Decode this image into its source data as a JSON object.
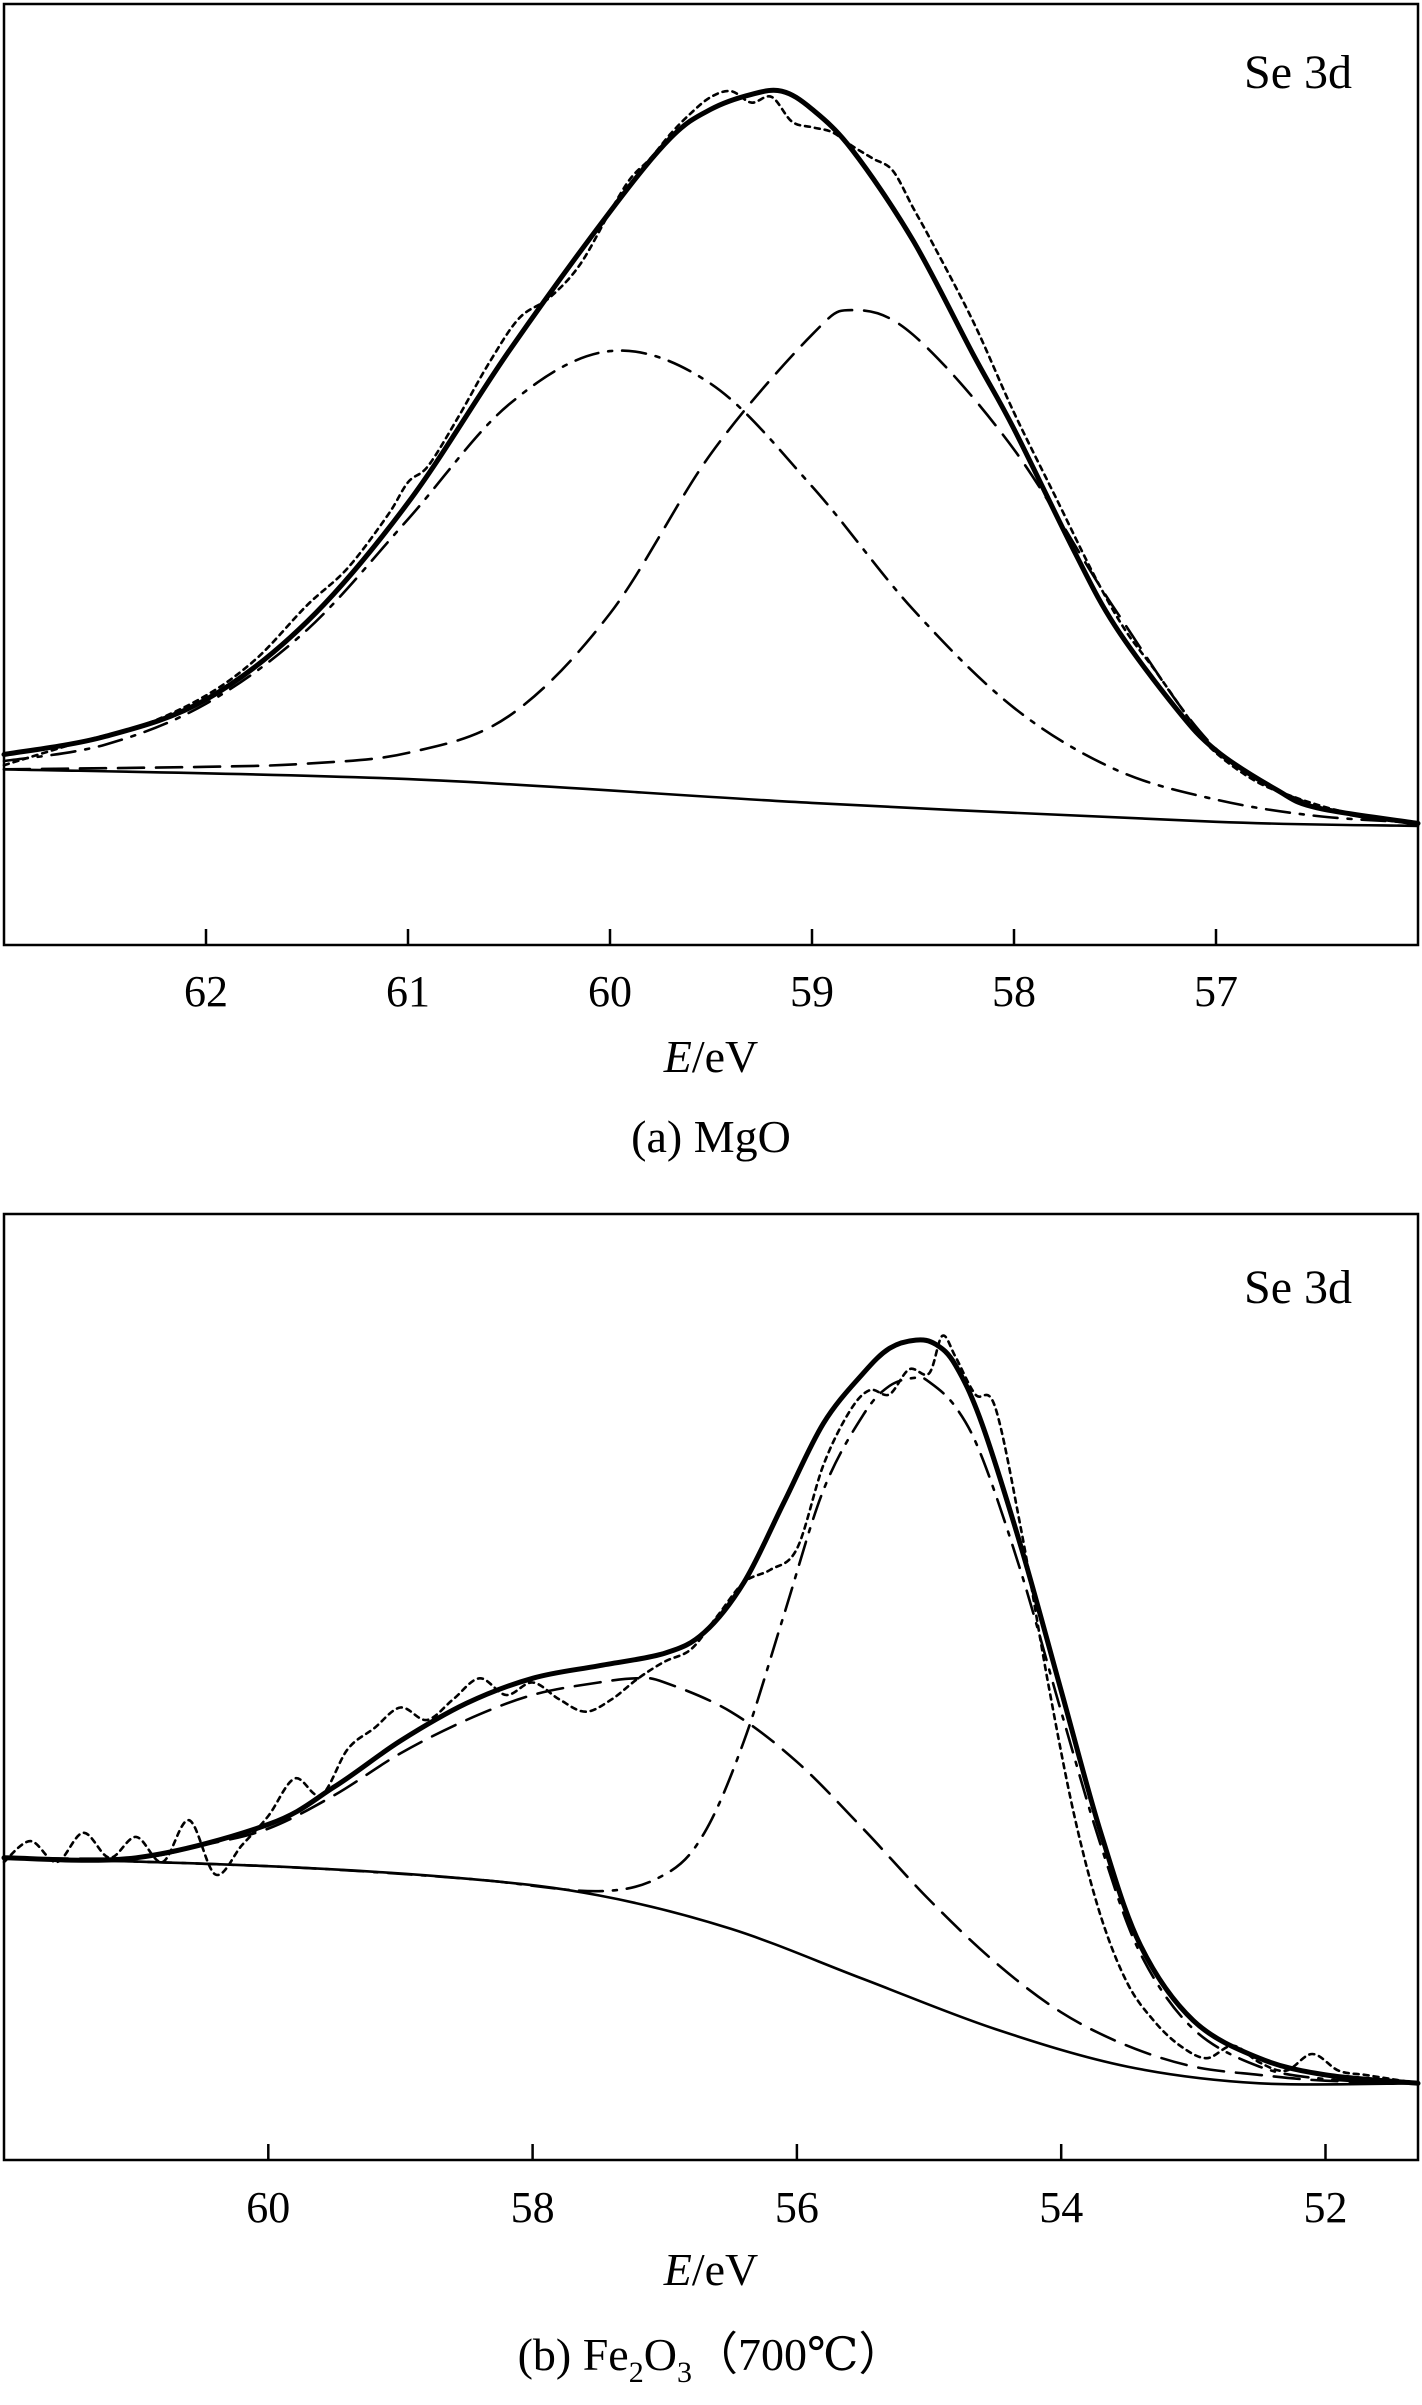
{
  "chart_data": [
    {
      "type": "line",
      "panel": "a",
      "label": "Se 3d",
      "xlabel_italic": "E",
      "xlabel_unit": "/eV",
      "caption": "(a) MgO",
      "xlim": [
        63.0,
        56.0
      ],
      "ylim": [
        0,
        100
      ],
      "xticks": [
        62,
        61,
        60,
        59,
        58,
        57
      ],
      "xtick_labels": [
        "62",
        "61",
        "60",
        "59",
        "58",
        "57"
      ],
      "background": {
        "x": [
          63.0,
          61.0,
          59.0,
          57.0,
          56.0
        ],
        "y": [
          13.5,
          12.3,
          9.4,
          7.1,
          6.6
        ]
      },
      "series": [
        {
          "name": "fitted envelope",
          "style": "envelope",
          "x": [
            63.0,
            62.5,
            62.0,
            61.5,
            61.0,
            60.5,
            60.0,
            59.7,
            59.5,
            59.3,
            59.15,
            59.0,
            58.8,
            58.5,
            58.2,
            58.0,
            57.7,
            57.5,
            57.2,
            57.0,
            56.7,
            56.5,
            56.0
          ],
          "y": [
            15.3,
            17.5,
            22.0,
            31.5,
            46.0,
            64.5,
            81.5,
            90.5,
            94.0,
            95.8,
            96.2,
            94.0,
            89.0,
            78.0,
            64.0,
            55.0,
            40.0,
            31.0,
            21.0,
            15.8,
            11.0,
            8.8,
            6.9
          ]
        },
        {
          "name": "raw spectrum",
          "style": "raw",
          "x": [
            63.0,
            62.6,
            62.3,
            62.0,
            61.75,
            61.5,
            61.3,
            61.1,
            61.0,
            60.9,
            60.75,
            60.6,
            60.45,
            60.3,
            60.15,
            60.0,
            59.9,
            59.8,
            59.7,
            59.6,
            59.5,
            59.4,
            59.3,
            59.2,
            59.1,
            59.0,
            58.9,
            58.8,
            58.7,
            58.6,
            58.5,
            58.4,
            58.2,
            58.0,
            57.8,
            57.6,
            57.45,
            57.3,
            57.1,
            57.0,
            56.8,
            56.6,
            56.4,
            56.2,
            56.0
          ],
          "y": [
            14.0,
            17.0,
            19.0,
            22.5,
            27.0,
            33.5,
            38.0,
            44.5,
            48.5,
            50.5,
            56.5,
            63.0,
            68.5,
            71.0,
            75.0,
            81.5,
            85.5,
            88.0,
            91.0,
            93.5,
            95.5,
            96.2,
            94.8,
            95.5,
            92.5,
            91.8,
            91.2,
            89.5,
            88.0,
            86.5,
            82.0,
            77.5,
            68.0,
            57.0,
            47.0,
            37.0,
            30.5,
            25.5,
            18.5,
            15.5,
            12.0,
            10.0,
            8.5,
            7.5,
            7.0
          ]
        },
        {
          "name": "peak 1 (dash-dot)",
          "style": "dashdot",
          "x": [
            63.0,
            62.5,
            62.0,
            61.5,
            61.0,
            60.5,
            60.0,
            59.5,
            59.0,
            58.5,
            58.0,
            57.5,
            57.0,
            56.5,
            56.0
          ],
          "y": [
            14.5,
            16.5,
            21.5,
            30.5,
            44.0,
            58.0,
            64.5,
            60.5,
            48.0,
            33.0,
            21.0,
            13.5,
            9.8,
            7.8,
            7.0
          ]
        },
        {
          "name": "peak 2 (dashed)",
          "style": "dash",
          "x": [
            63.0,
            62.0,
            61.5,
            61.0,
            60.5,
            60.0,
            59.5,
            59.0,
            58.8,
            58.5,
            58.0,
            57.5,
            57.0,
            56.5,
            56.0
          ],
          "y": [
            13.5,
            13.8,
            14.2,
            15.5,
            20.0,
            32.5,
            52.0,
            66.5,
            69.5,
            66.5,
            52.5,
            33.0,
            16.0,
            9.0,
            6.8
          ]
        }
      ]
    },
    {
      "type": "line",
      "panel": "b",
      "label": "Se 3d",
      "xlabel_italic": "E",
      "xlabel_unit": "/eV",
      "caption_prefix": "(b) Fe",
      "caption_sub1": "2",
      "caption_mid": "O",
      "caption_sub2": "3",
      "caption_suffix": "（700℃）",
      "xlim": [
        62.0,
        51.3
      ],
      "ylim": [
        0,
        100
      ],
      "xticks": [
        60,
        58,
        56,
        54,
        52
      ],
      "xtick_labels": [
        "60",
        "58",
        "56",
        "54",
        "52"
      ],
      "background": {
        "x": [
          62.0,
          60.0,
          58.5,
          57.5,
          56.5,
          55.5,
          54.5,
          53.5,
          52.5,
          51.3
        ],
        "y": [
          32.0,
          31.0,
          29.5,
          27.5,
          23.5,
          17.5,
          11.5,
          7.0,
          5.0,
          5.0
        ]
      },
      "series": [
        {
          "name": "fitted envelope",
          "style": "envelope",
          "x": [
            62.0,
            61.0,
            60.0,
            59.5,
            59.0,
            58.5,
            58.0,
            57.5,
            57.0,
            56.7,
            56.4,
            56.1,
            55.8,
            55.5,
            55.3,
            55.1,
            54.95,
            54.8,
            54.6,
            54.3,
            54.0,
            53.7,
            53.4,
            53.0,
            52.5,
            52.0,
            51.3
          ],
          "y": [
            32.0,
            32.0,
            36.0,
            40.5,
            46.0,
            50.5,
            53.5,
            55.0,
            56.5,
            59.0,
            65.0,
            74.5,
            84.0,
            90.0,
            93.0,
            94.0,
            93.5,
            91.0,
            84.0,
            69.0,
            52.0,
            35.0,
            21.5,
            12.5,
            8.0,
            6.0,
            5.0
          ]
        },
        {
          "name": "raw spectrum",
          "style": "raw",
          "x": [
            62.0,
            61.8,
            61.6,
            61.4,
            61.2,
            61.0,
            60.8,
            60.6,
            60.4,
            60.2,
            60.0,
            59.8,
            59.6,
            59.4,
            59.2,
            59.0,
            58.8,
            58.6,
            58.4,
            58.2,
            58.0,
            57.8,
            57.6,
            57.4,
            57.2,
            57.0,
            56.8,
            56.6,
            56.4,
            56.2,
            56.0,
            55.8,
            55.6,
            55.45,
            55.3,
            55.15,
            55.0,
            54.9,
            54.8,
            54.65,
            54.5,
            54.3,
            54.1,
            53.9,
            53.7,
            53.5,
            53.3,
            53.1,
            52.9,
            52.7,
            52.5,
            52.3,
            52.1,
            51.9,
            51.7,
            51.5,
            51.3
          ],
          "y": [
            31.5,
            34.0,
            31.5,
            35.0,
            32.0,
            34.5,
            31.5,
            36.5,
            30.0,
            33.5,
            37.0,
            41.5,
            39.5,
            45.0,
            47.5,
            50.0,
            48.5,
            51.0,
            53.5,
            51.5,
            53.0,
            51.0,
            49.5,
            51.0,
            53.5,
            55.5,
            57.0,
            61.0,
            65.0,
            66.5,
            69.0,
            79.0,
            85.5,
            88.0,
            87.5,
            90.5,
            90.0,
            94.5,
            92.0,
            87.5,
            86.0,
            71.0,
            53.0,
            37.0,
            25.0,
            17.0,
            12.5,
            9.5,
            8.0,
            9.5,
            7.5,
            6.5,
            8.5,
            6.5,
            6.0,
            5.5,
            5.0
          ]
        },
        {
          "name": "peak 1 (dashed)",
          "style": "dash",
          "x": [
            62.0,
            61.0,
            60.5,
            60.0,
            59.5,
            59.0,
            58.5,
            58.0,
            57.5,
            57.2,
            57.0,
            56.5,
            56.0,
            55.5,
            55.0,
            54.5,
            54.0,
            53.5,
            53.0,
            52.5,
            52.0,
            51.3
          ],
          "y": [
            32.0,
            32.0,
            33.5,
            35.5,
            39.5,
            44.5,
            48.5,
            51.5,
            53.0,
            53.5,
            53.0,
            49.5,
            43.5,
            35.5,
            27.0,
            19.5,
            13.5,
            9.5,
            7.0,
            6.0,
            5.3,
            5.0
          ]
        },
        {
          "name": "peak 2 (dash-dot)",
          "style": "dashdot",
          "x": [
            62.0,
            60.0,
            58.5,
            57.5,
            57.0,
            56.7,
            56.4,
            56.1,
            55.8,
            55.5,
            55.3,
            55.1,
            55.0,
            54.8,
            54.6,
            54.3,
            54.0,
            53.7,
            53.4,
            53.0,
            52.5,
            52.0,
            51.3
          ],
          "y": [
            32.0,
            31.0,
            29.5,
            28.0,
            30.0,
            35.0,
            46.0,
            61.0,
            76.0,
            85.0,
            88.5,
            89.5,
            89.0,
            86.0,
            80.0,
            66.0,
            49.5,
            33.5,
            20.5,
            11.5,
            7.0,
            5.5,
            5.0
          ]
        }
      ]
    }
  ]
}
